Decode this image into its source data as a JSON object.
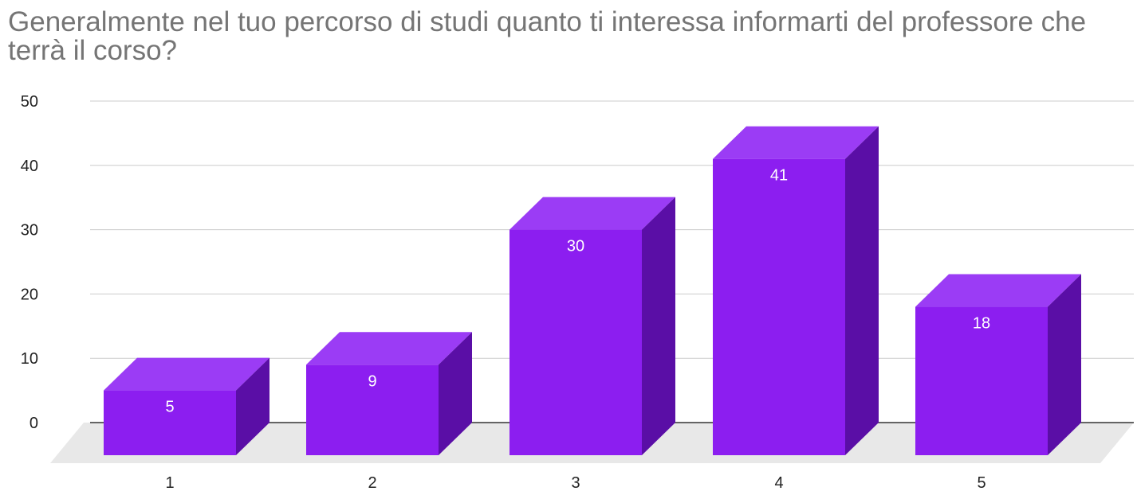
{
  "chart_data": {
    "type": "bar",
    "title": "Generalmente nel tuo percorso di studi quanto ti interessa informarti del professore che terrà il corso?",
    "categories": [
      "1",
      "2",
      "3",
      "4",
      "5"
    ],
    "values": [
      5,
      9,
      30,
      41,
      18
    ],
    "data_labels": [
      "5",
      "9",
      "30",
      "41",
      "18"
    ],
    "y_ticks": [
      "0",
      "10",
      "20",
      "30",
      "40",
      "50"
    ],
    "ylim": [
      0,
      50
    ],
    "grid": true,
    "legend": "none",
    "style": "3d-columns",
    "colors": {
      "front": "#8c1ef0",
      "top": "#9b3cf5",
      "side": "#5a0ea6",
      "floor": "#e8e8e8",
      "grid": "#cccccc",
      "baseline": "#333333"
    }
  }
}
